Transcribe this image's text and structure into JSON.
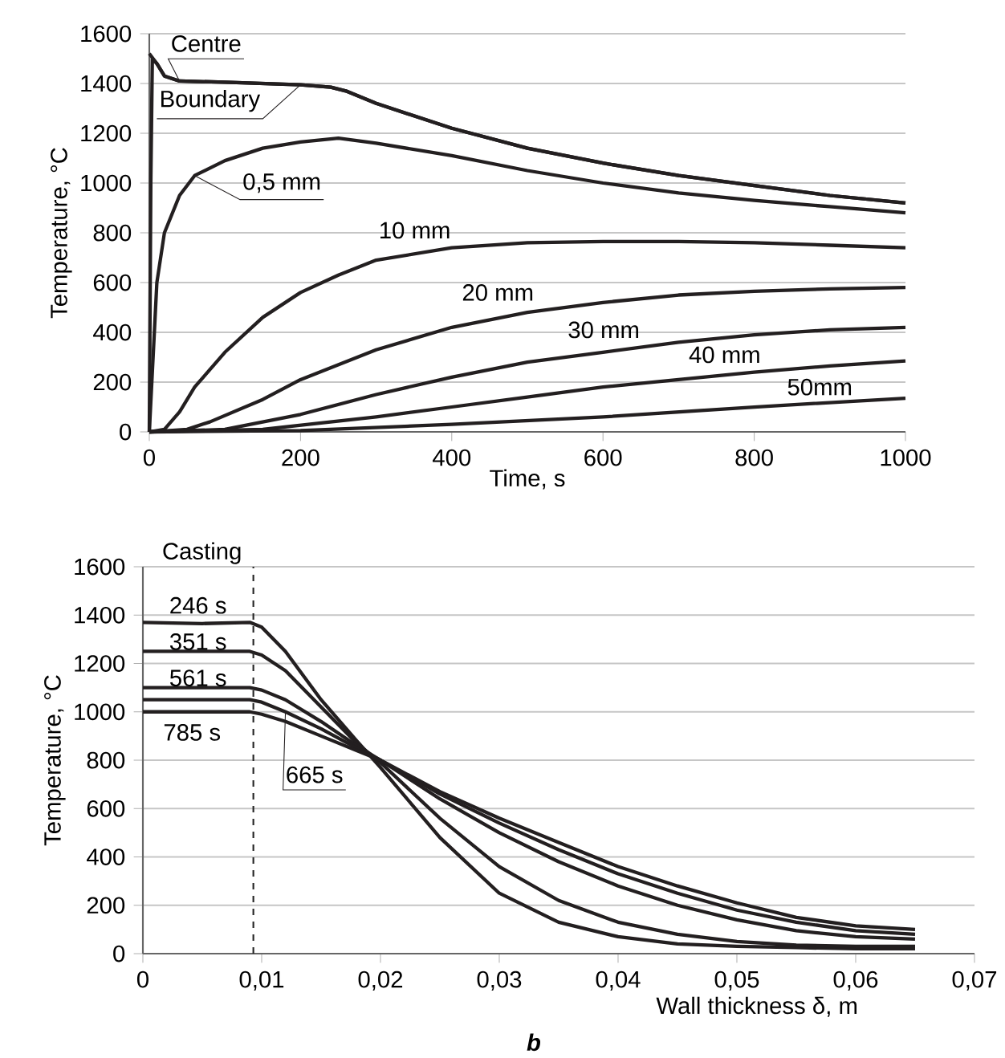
{
  "chart_data": [
    {
      "type": "line",
      "xlabel": "Time, s",
      "ylabel": "Temperature, °C",
      "xlim": [
        0,
        1000
      ],
      "ylim": [
        0,
        1600
      ],
      "xticks": [
        0,
        200,
        400,
        600,
        800,
        1000
      ],
      "yticks": [
        0,
        200,
        400,
        600,
        800,
        1000,
        1200,
        1400,
        1600
      ],
      "grid": "y",
      "series": [
        {
          "name": "Centre",
          "color": "#231f20",
          "x": [
            0,
            10,
            20,
            40,
            100,
            200,
            240,
            260,
            300,
            400,
            500,
            600,
            700,
            800,
            900,
            1000
          ],
          "values": [
            1520,
            1480,
            1430,
            1410,
            1405,
            1395,
            1385,
            1370,
            1320,
            1220,
            1140,
            1080,
            1030,
            990,
            950,
            920
          ]
        },
        {
          "name": "Boundary",
          "color": "#231f20",
          "x": [
            0,
            2,
            4,
            10,
            20,
            40,
            100,
            200,
            240,
            260,
            300,
            400,
            500,
            600,
            700,
            800,
            900,
            1000
          ],
          "values": [
            0,
            1000,
            1500,
            1480,
            1430,
            1410,
            1405,
            1395,
            1385,
            1370,
            1320,
            1220,
            1140,
            1080,
            1030,
            990,
            950,
            920
          ]
        },
        {
          "name": "0,5  mm",
          "color": "#231f20",
          "x": [
            0,
            5,
            10,
            20,
            40,
            60,
            100,
            150,
            200,
            250,
            300,
            400,
            500,
            600,
            700,
            800,
            900,
            1000
          ],
          "values": [
            0,
            300,
            600,
            800,
            950,
            1030,
            1090,
            1140,
            1165,
            1180,
            1160,
            1110,
            1050,
            1000,
            960,
            930,
            905,
            880
          ]
        },
        {
          "name": "10  mm",
          "color": "#231f20",
          "x": [
            0,
            20,
            40,
            60,
            100,
            150,
            200,
            250,
            300,
            400,
            500,
            600,
            700,
            800,
            900,
            1000
          ],
          "values": [
            0,
            10,
            80,
            180,
            320,
            460,
            560,
            630,
            690,
            740,
            760,
            765,
            765,
            760,
            750,
            740
          ]
        },
        {
          "name": "20  mm",
          "color": "#231f20",
          "x": [
            0,
            50,
            80,
            150,
            200,
            300,
            400,
            500,
            600,
            700,
            800,
            900,
            1000
          ],
          "values": [
            0,
            10,
            40,
            130,
            210,
            330,
            420,
            480,
            520,
            550,
            565,
            575,
            580
          ]
        },
        {
          "name": "30  mm",
          "color": "#231f20",
          "x": [
            0,
            100,
            200,
            300,
            400,
            500,
            600,
            700,
            800,
            900,
            1000
          ],
          "values": [
            0,
            10,
            70,
            150,
            220,
            280,
            320,
            360,
            390,
            410,
            420
          ]
        },
        {
          "name": "40  mm",
          "color": "#231f20",
          "x": [
            0,
            150,
            300,
            400,
            500,
            600,
            700,
            800,
            900,
            1000
          ],
          "values": [
            0,
            10,
            60,
            100,
            140,
            180,
            210,
            240,
            265,
            285
          ]
        },
        {
          "name": "50mm",
          "color": "#231f20",
          "x": [
            0,
            200,
            400,
            600,
            800,
            1000
          ],
          "values": [
            0,
            5,
            30,
            60,
            100,
            135
          ]
        }
      ]
    },
    {
      "type": "line",
      "xlabel": "Wall thickness δ, m",
      "ylabel": "Temperature, °C",
      "annotations": [
        "Casting",
        "b"
      ],
      "xlim": [
        0,
        0.07
      ],
      "ylim": [
        0,
        1600
      ],
      "xticks": [
        0,
        {
          "value": 0.01,
          "label": "0,01"
        },
        {
          "value": 0.02,
          "label": "0,02"
        },
        {
          "value": 0.03,
          "label": "0,03"
        },
        {
          "value": 0.04,
          "label": "0,04"
        },
        {
          "value": 0.05,
          "label": "0,05"
        },
        {
          "value": 0.06,
          "label": "0,06"
        },
        {
          "value": 0.07,
          "label": "0,07"
        }
      ],
      "yticks": [
        0,
        200,
        400,
        600,
        800,
        1000,
        1200,
        1400,
        1600
      ],
      "grid": "y",
      "ref_lines": [
        {
          "axis": "x",
          "value": 0.0093,
          "line_style": "dashed"
        }
      ],
      "x": [
        0,
        0.005,
        0.009,
        0.01,
        0.012,
        0.015,
        0.018,
        0.02,
        0.025,
        0.03,
        0.035,
        0.04,
        0.045,
        0.05,
        0.055,
        0.06,
        0.065
      ],
      "series": [
        {
          "name": "246  s",
          "color": "#231f20",
          "values": [
            1370,
            1365,
            1370,
            1350,
            1250,
            1050,
            880,
            770,
            480,
            250,
            130,
            70,
            40,
            30,
            25,
            20,
            20
          ]
        },
        {
          "name": "351  s",
          "color": "#231f20",
          "values": [
            1250,
            1250,
            1250,
            1235,
            1170,
            1020,
            870,
            790,
            560,
            360,
            220,
            130,
            80,
            50,
            35,
            30,
            30
          ]
        },
        {
          "name": "561  s",
          "color": "#231f20",
          "values": [
            1100,
            1100,
            1100,
            1090,
            1050,
            960,
            860,
            800,
            640,
            500,
            380,
            280,
            200,
            140,
            95,
            70,
            60
          ]
        },
        {
          "name": "665  s",
          "color": "#231f20",
          "values": [
            1050,
            1050,
            1050,
            1040,
            1000,
            930,
            850,
            800,
            660,
            540,
            430,
            330,
            250,
            180,
            130,
            95,
            80
          ]
        },
        {
          "name": "785  s",
          "color": "#231f20",
          "values": [
            1000,
            1000,
            1000,
            990,
            960,
            900,
            840,
            800,
            670,
            560,
            460,
            360,
            280,
            210,
            150,
            115,
            100
          ]
        }
      ]
    }
  ]
}
